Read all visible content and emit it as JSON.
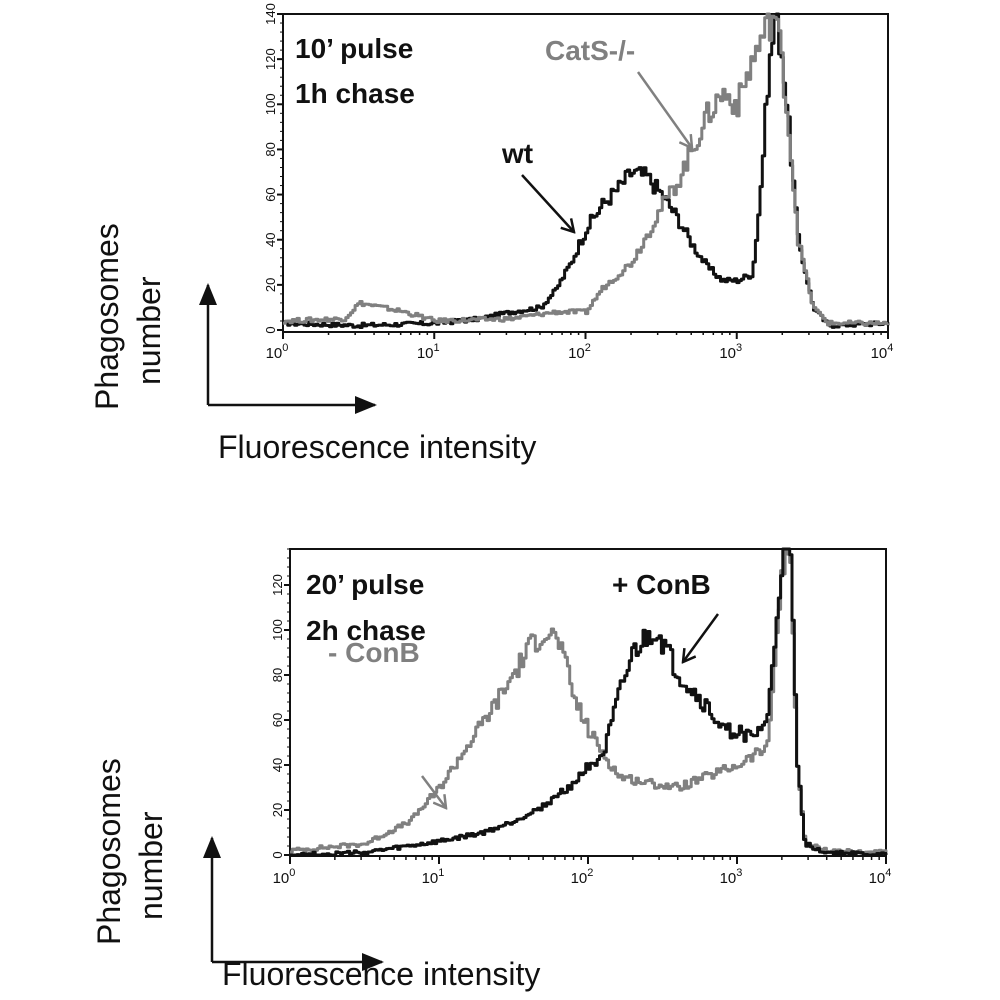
{
  "colors": {
    "black": "#111111",
    "gray": "#808080"
  },
  "chart_data": [
    {
      "type": "line",
      "xscale": "log",
      "xlim": [
        1,
        10000
      ],
      "ylim": [
        0,
        140
      ],
      "xticklabels": [
        {
          "base": "10",
          "exp": "0"
        },
        {
          "base": "10",
          "exp": "1"
        },
        {
          "base": "10",
          "exp": "2"
        },
        {
          "base": "10",
          "exp": "3"
        },
        {
          "base": "10",
          "exp": "4"
        }
      ],
      "yticks": [
        0,
        20,
        40,
        60,
        80,
        100,
        120,
        140
      ],
      "title_lines": [
        "10’ pulse",
        "1h chase"
      ],
      "ylabel_lines": [
        "Phagosomes",
        "number"
      ],
      "xlabel": "Fluorescence intensity",
      "series": [
        {
          "name": "wt",
          "color": "#111111",
          "log10x": [
            0,
            0.5,
            1,
            1.3,
            1.5,
            1.7,
            1.8,
            1.9,
            2.0,
            2.1,
            2.2,
            2.3,
            2.4,
            2.5,
            2.6,
            2.7,
            2.8,
            2.9,
            3.0,
            3.1,
            3.15,
            3.2,
            3.25,
            3.3,
            3.35,
            3.4,
            3.5,
            3.6,
            4
          ],
          "y": [
            3,
            2,
            3,
            5,
            8,
            10,
            18,
            30,
            45,
            55,
            62,
            70,
            68,
            60,
            50,
            38,
            28,
            22,
            22,
            25,
            60,
            110,
            140,
            120,
            80,
            40,
            10,
            2,
            3
          ]
        },
        {
          "name": "CatS-/-",
          "color": "#808080",
          "log10x": [
            0,
            0.4,
            0.5,
            0.8,
            1.0,
            1.5,
            1.8,
            2.0,
            2.1,
            2.3,
            2.4,
            2.5,
            2.6,
            2.7,
            2.8,
            2.9,
            3.0,
            3.1,
            3.2,
            3.25,
            3.3,
            3.35,
            3.4,
            3.5,
            3.6,
            4
          ],
          "y": [
            4,
            5,
            12,
            8,
            4,
            5,
            8,
            8,
            18,
            30,
            42,
            55,
            65,
            80,
            95,
            105,
            100,
            120,
            135,
            140,
            115,
            80,
            40,
            10,
            3,
            3
          ]
        }
      ]
    },
    {
      "type": "line",
      "xscale": "log",
      "xlim": [
        1,
        10000
      ],
      "ylim": [
        0,
        136
      ],
      "xticklabels": [
        {
          "base": "10",
          "exp": "0"
        },
        {
          "base": "10",
          "exp": "1"
        },
        {
          "base": "10",
          "exp": "2"
        },
        {
          "base": "10",
          "exp": "3"
        },
        {
          "base": "10",
          "exp": "4"
        }
      ],
      "yticks": [
        0,
        20,
        40,
        60,
        80,
        100,
        120
      ],
      "title_lines": [
        "20’ pulse",
        "2h chase"
      ],
      "ylabel_lines": [
        "Phagosomes",
        "number"
      ],
      "xlabel": "Fluorescence intensity",
      "series": [
        {
          "name": "- ConB",
          "color": "#808080",
          "log10x": [
            0,
            0.5,
            0.8,
            1.0,
            1.2,
            1.4,
            1.6,
            1.7,
            1.8,
            1.9,
            2.0,
            2.1,
            2.2,
            2.4,
            2.6,
            2.8,
            3.0,
            3.2,
            3.3,
            3.35,
            3.4,
            3.45,
            3.6,
            4
          ],
          "y": [
            2,
            5,
            15,
            30,
            50,
            70,
            92,
            100,
            95,
            70,
            55,
            45,
            35,
            32,
            30,
            35,
            40,
            48,
            130,
            136,
            40,
            5,
            2,
            1
          ]
        },
        {
          "name": "+ ConB",
          "color": "#111111",
          "log10x": [
            0,
            0.5,
            0.8,
            1.0,
            1.3,
            1.5,
            1.7,
            1.9,
            2.0,
            2.1,
            2.2,
            2.3,
            2.45,
            2.6,
            2.8,
            2.9,
            3.0,
            3.1,
            3.2,
            3.3,
            3.35,
            3.4,
            3.45,
            3.6,
            4
          ],
          "y": [
            0,
            1,
            4,
            6,
            10,
            15,
            22,
            32,
            40,
            45,
            70,
            90,
            100,
            80,
            65,
            55,
            55,
            52,
            60,
            136,
            136,
            40,
            5,
            1,
            0
          ]
        }
      ]
    }
  ]
}
